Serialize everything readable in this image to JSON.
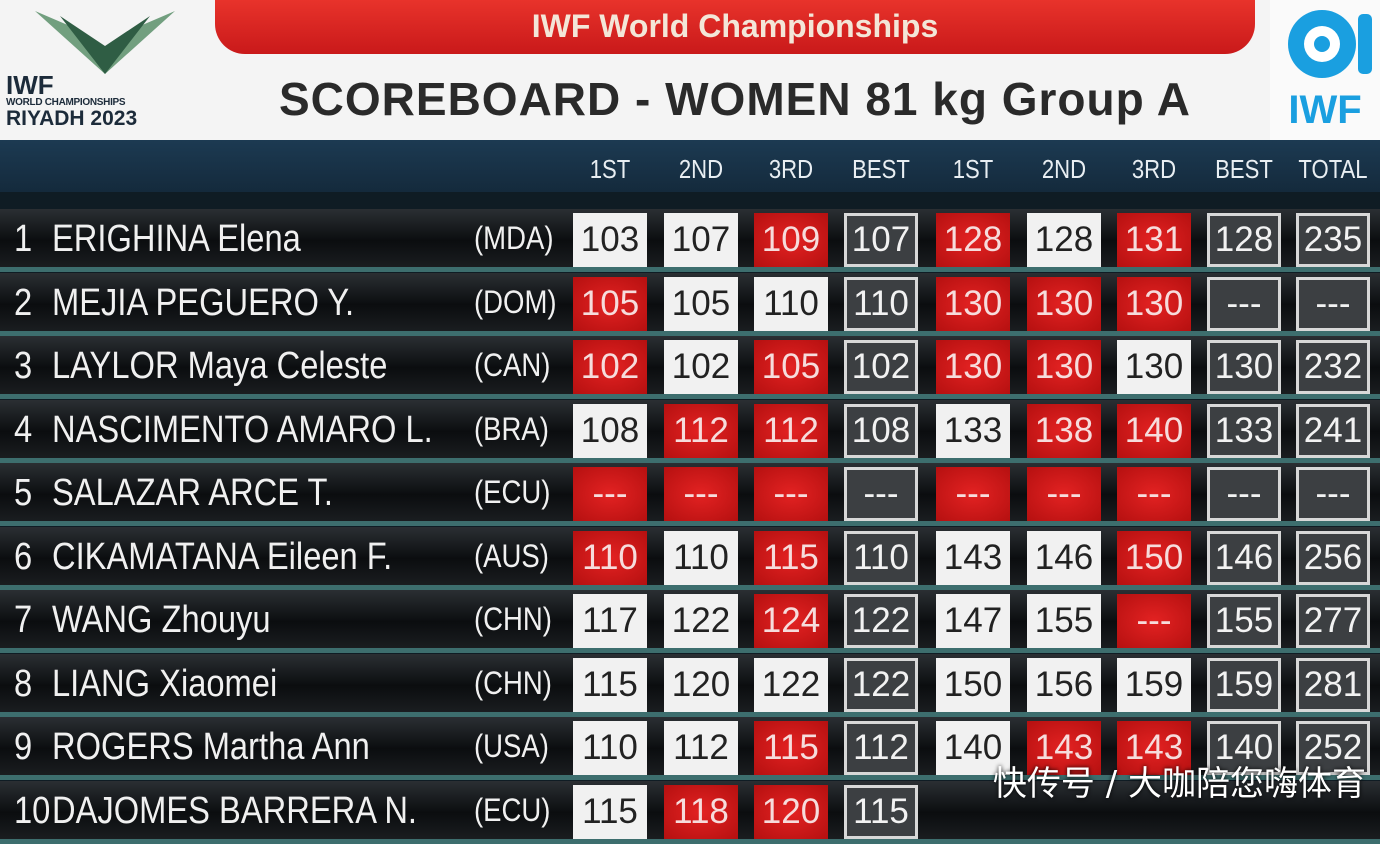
{
  "header": {
    "event": "IWF World Championships",
    "title": "SCOREBOARD - WOMEN 81 kg Group A",
    "logo_left": {
      "line1": "IWF",
      "line2": "WORLD CHAMPIONSHIPS",
      "line3": "RIYADH 2023"
    },
    "logo_right": "IWF"
  },
  "columns": [
    "1ST",
    "2ND",
    "3RD",
    "BEST",
    "1ST",
    "2ND",
    "3RD",
    "BEST",
    "TOTAL"
  ],
  "rows": [
    {
      "rank": 1,
      "name": "ERIGHINA Elena",
      "country": "(MDA)",
      "cells": [
        {
          "value": 103,
          "made": true
        },
        {
          "value": 107,
          "made": true
        },
        {
          "value": 109,
          "made": false
        },
        {
          "value": 107
        },
        {
          "value": 128,
          "made": false
        },
        {
          "value": 128,
          "made": true
        },
        {
          "value": 131,
          "made": false
        },
        {
          "value": 128
        },
        {
          "value": 235
        }
      ]
    },
    {
      "rank": 2,
      "name": "MEJIA PEGUERO Y.",
      "country": "(DOM)",
      "cells": [
        {
          "value": 105,
          "made": false
        },
        {
          "value": 105,
          "made": true
        },
        {
          "value": 110,
          "made": true
        },
        {
          "value": 110
        },
        {
          "value": 130,
          "made": false
        },
        {
          "value": 130,
          "made": false
        },
        {
          "value": 130,
          "made": false
        },
        {
          "value": "---"
        },
        {
          "value": "---"
        }
      ]
    },
    {
      "rank": 3,
      "name": "LAYLOR Maya Celeste",
      "country": "(CAN)",
      "cells": [
        {
          "value": 102,
          "made": false
        },
        {
          "value": 102,
          "made": true
        },
        {
          "value": 105,
          "made": false
        },
        {
          "value": 102
        },
        {
          "value": 130,
          "made": false
        },
        {
          "value": 130,
          "made": false
        },
        {
          "value": 130,
          "made": true
        },
        {
          "value": 130
        },
        {
          "value": 232
        }
      ]
    },
    {
      "rank": 4,
      "name": "NASCIMENTO AMARO L.",
      "country": "(BRA)",
      "cells": [
        {
          "value": 108,
          "made": true
        },
        {
          "value": 112,
          "made": false
        },
        {
          "value": 112,
          "made": false
        },
        {
          "value": 108
        },
        {
          "value": 133,
          "made": true
        },
        {
          "value": 138,
          "made": false
        },
        {
          "value": 140,
          "made": false
        },
        {
          "value": 133
        },
        {
          "value": 241
        }
      ]
    },
    {
      "rank": 5,
      "name": "SALAZAR ARCE T.",
      "country": "(ECU)",
      "cells": [
        {
          "value": "---",
          "made": false
        },
        {
          "value": "---",
          "made": false
        },
        {
          "value": "---",
          "made": false
        },
        {
          "value": "---"
        },
        {
          "value": "---",
          "made": false
        },
        {
          "value": "---",
          "made": false
        },
        {
          "value": "---",
          "made": false
        },
        {
          "value": "---"
        },
        {
          "value": "---"
        }
      ]
    },
    {
      "rank": 6,
      "name": "CIKAMATANA Eileen F.",
      "country": "(AUS)",
      "cells": [
        {
          "value": 110,
          "made": false
        },
        {
          "value": 110,
          "made": true
        },
        {
          "value": 115,
          "made": false
        },
        {
          "value": 110
        },
        {
          "value": 143,
          "made": true
        },
        {
          "value": 146,
          "made": true
        },
        {
          "value": 150,
          "made": false
        },
        {
          "value": 146
        },
        {
          "value": 256
        }
      ]
    },
    {
      "rank": 7,
      "name": "WANG Zhouyu",
      "country": "(CHN)",
      "cells": [
        {
          "value": 117,
          "made": true
        },
        {
          "value": 122,
          "made": true
        },
        {
          "value": 124,
          "made": false
        },
        {
          "value": 122
        },
        {
          "value": 147,
          "made": true
        },
        {
          "value": 155,
          "made": true
        },
        {
          "value": "---",
          "made": false
        },
        {
          "value": 155
        },
        {
          "value": 277
        }
      ]
    },
    {
      "rank": 8,
      "name": "LIANG Xiaomei",
      "country": "(CHN)",
      "cells": [
        {
          "value": 115,
          "made": true
        },
        {
          "value": 120,
          "made": true
        },
        {
          "value": 122,
          "made": true
        },
        {
          "value": 122
        },
        {
          "value": 150,
          "made": true
        },
        {
          "value": 156,
          "made": true
        },
        {
          "value": 159,
          "made": true
        },
        {
          "value": 159
        },
        {
          "value": 281
        }
      ]
    },
    {
      "rank": 9,
      "name": "ROGERS Martha Ann",
      "country": "(USA)",
      "cells": [
        {
          "value": 110,
          "made": true
        },
        {
          "value": 112,
          "made": true
        },
        {
          "value": 115,
          "made": false
        },
        {
          "value": 112
        },
        {
          "value": 140,
          "made": true
        },
        {
          "value": 143,
          "made": false
        },
        {
          "value": 143,
          "made": false
        },
        {
          "value": 140
        },
        {
          "value": 252
        }
      ]
    },
    {
      "rank": 10,
      "name": "DAJOMES BARRERA N.",
      "country": "(ECU)",
      "cells": [
        {
          "value": 115,
          "made": true
        },
        {
          "value": 118,
          "made": false
        },
        {
          "value": 120,
          "made": false
        },
        {
          "value": 115
        }
      ]
    }
  ],
  "watermark": "快传号 / 大咖陪您嗨体育"
}
